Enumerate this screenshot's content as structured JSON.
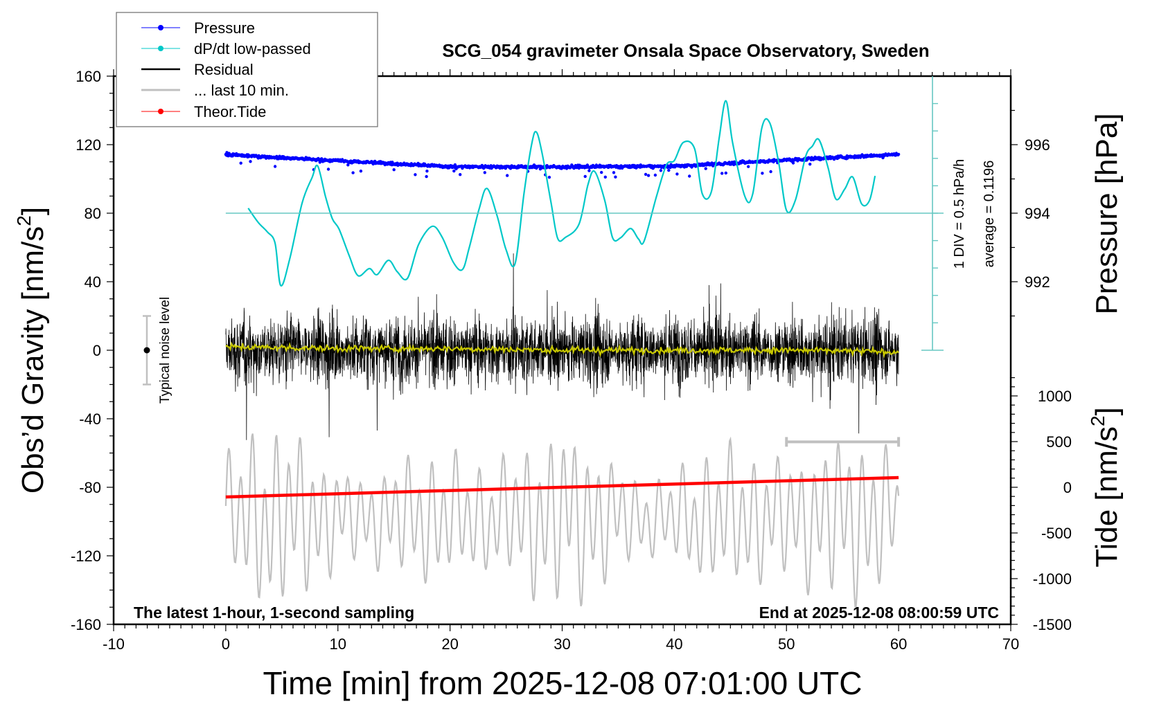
{
  "chart_data": {
    "type": "line",
    "title": "SCG_054 gravimeter Onsala Space Observatory, Sweden",
    "xlabel": "Time [min] from 2025-12-08 07:01:00 UTC",
    "ylabel_left": {
      "main": "Obs’d Gravity [nm/s",
      "sup": "2",
      "end": "]"
    },
    "ylabel_right_pressure": "Pressure [hPa]",
    "ylabel_right_tide": {
      "main": "Tide [nm/s",
      "sup": "2",
      "end": "]"
    },
    "xlim": [
      -10,
      70
    ],
    "ylim_left": [
      -160,
      160
    ],
    "x_ticks": [
      "-10",
      "0",
      "10",
      "20",
      "30",
      "40",
      "50",
      "60",
      "70"
    ],
    "x_tick_values": [
      -10,
      0,
      10,
      20,
      30,
      40,
      50,
      60,
      70
    ],
    "y_ticks_left": [
      "160",
      "120",
      "80",
      "40",
      "0",
      "-40",
      "-80",
      "-120",
      "-160"
    ],
    "y_tick_values_left": [
      160,
      120,
      80,
      40,
      0,
      -40,
      -80,
      -120,
      -160
    ],
    "pressure_ticks": [
      "996",
      "994",
      "992"
    ],
    "pressure_tick_values": [
      996,
      994,
      992
    ],
    "tide_ticks": [
      "1000",
      "500",
      "0",
      "-500",
      "-1000",
      "-1500"
    ],
    "tide_tick_values": [
      1000,
      500,
      0,
      -500,
      -1000,
      -1500
    ],
    "legend_position": "top-left",
    "legend": [
      {
        "label": "Pressure",
        "color": "#0000ff",
        "marker": true
      },
      {
        "label": "dP/dt low-passed",
        "color": "#00c8c8",
        "marker": true
      },
      {
        "label": "Residual",
        "color": "#000000",
        "marker": false
      },
      {
        "label": "... last 10 min.",
        "color": "#c0c0c0",
        "marker": false
      },
      {
        "label": "Theor.Tide",
        "color": "#ff0000",
        "marker": true
      }
    ],
    "annotations": {
      "bottom_left": "The latest 1-hour, 1-second sampling",
      "bottom_right": "End at 2025-12-08 08:00:59 UTC",
      "noise_label": "Typical noise level",
      "noise_range": [
        -20,
        20
      ],
      "ruler_div": "1 DIV = 0.5 hPa/h",
      "ruler_average": "average = 0.1196"
    },
    "series": [
      {
        "name": "Pressure",
        "unit": "hPa",
        "color": "#0000ff",
        "x": [
          0,
          10,
          20,
          30,
          40,
          50,
          60
        ],
        "values": [
          995.71,
          995.53,
          995.36,
          995.35,
          995.37,
          995.55,
          995.72
        ],
        "scatter_hPa": 0.06
      },
      {
        "name": "dP/dt low-passed",
        "unit": "hPa/h",
        "color": "#00c8c8",
        "average": 0.1196,
        "x": [
          2.0,
          2.9,
          3.7,
          4.4,
          4.9,
          5.7,
          6.8,
          7.7,
          8.2,
          8.9,
          9.5,
          10.1,
          11.0,
          11.8,
          12.8,
          13.5,
          14.5,
          15.3,
          16.2,
          17.2,
          18.4,
          19.3,
          20.3,
          21.1,
          21.7,
          22.6,
          23.3,
          24.2,
          25.0,
          25.8,
          26.6,
          27.3,
          27.7,
          28.2,
          29.0,
          29.6,
          30.3,
          31.5,
          32.3,
          32.9,
          33.8,
          34.5,
          35.2,
          36.1,
          36.8,
          37.3,
          38.4,
          39.3,
          40.0,
          40.8,
          41.8,
          42.5,
          43.3,
          44.0,
          44.6,
          45.2,
          46.3,
          47.0,
          47.8,
          48.5,
          49.3,
          50.0,
          50.8,
          51.7,
          52.3,
          52.9,
          53.7,
          54.4,
          55.2,
          55.9,
          56.7,
          57.4,
          57.9
        ],
        "values": [
          0.21,
          -0.05,
          -0.22,
          -0.43,
          -1.2,
          -0.72,
          0.3,
          0.77,
          0.98,
          0.42,
          0.02,
          -0.17,
          -0.65,
          -1.02,
          -0.89,
          -1.0,
          -0.74,
          -0.95,
          -1.07,
          -0.45,
          -0.12,
          -0.32,
          -0.78,
          -0.91,
          -0.52,
          0.2,
          0.57,
          0.07,
          -0.55,
          -0.8,
          0.49,
          1.4,
          1.6,
          1.22,
          0.32,
          -0.34,
          -0.32,
          -0.08,
          0.64,
          0.88,
          0.35,
          -0.33,
          -0.33,
          -0.16,
          -0.35,
          -0.39,
          0.42,
          1.0,
          1.08,
          1.41,
          1.3,
          0.47,
          0.51,
          1.49,
          2.17,
          1.4,
          0.42,
          0.48,
          1.67,
          1.77,
          1.05,
          0.17,
          0.36,
          1.15,
          1.34,
          1.46,
          0.96,
          0.38,
          0.56,
          0.78,
          0.29,
          0.35,
          0.8
        ]
      },
      {
        "name": "Residual",
        "unit": "nm/s2",
        "color": "#000000",
        "x": [
          0,
          60
        ],
        "typical_amplitude": 20,
        "max_abs": 75
      },
      {
        "name": "Residual low-passed",
        "unit": "nm/s2",
        "color": "#c8c800",
        "x": [
          0,
          10,
          20,
          30,
          40,
          50,
          60
        ],
        "values": [
          2,
          1,
          1,
          0,
          0,
          0,
          -1
        ]
      },
      {
        "name": "... last 10 min.",
        "unit": "nm/s2",
        "color": "#c0c0c0",
        "x_range_minutes": [
          50,
          60
        ],
        "stretched_over": [
          0,
          60
        ],
        "baseline_gravity": -98,
        "amplitude_gravity": 45
      },
      {
        "name": "Theor.Tide",
        "unit": "nm/s2",
        "color": "#ff0000",
        "x": [
          0,
          60
        ],
        "values": [
          -106,
          106
        ]
      }
    ]
  }
}
